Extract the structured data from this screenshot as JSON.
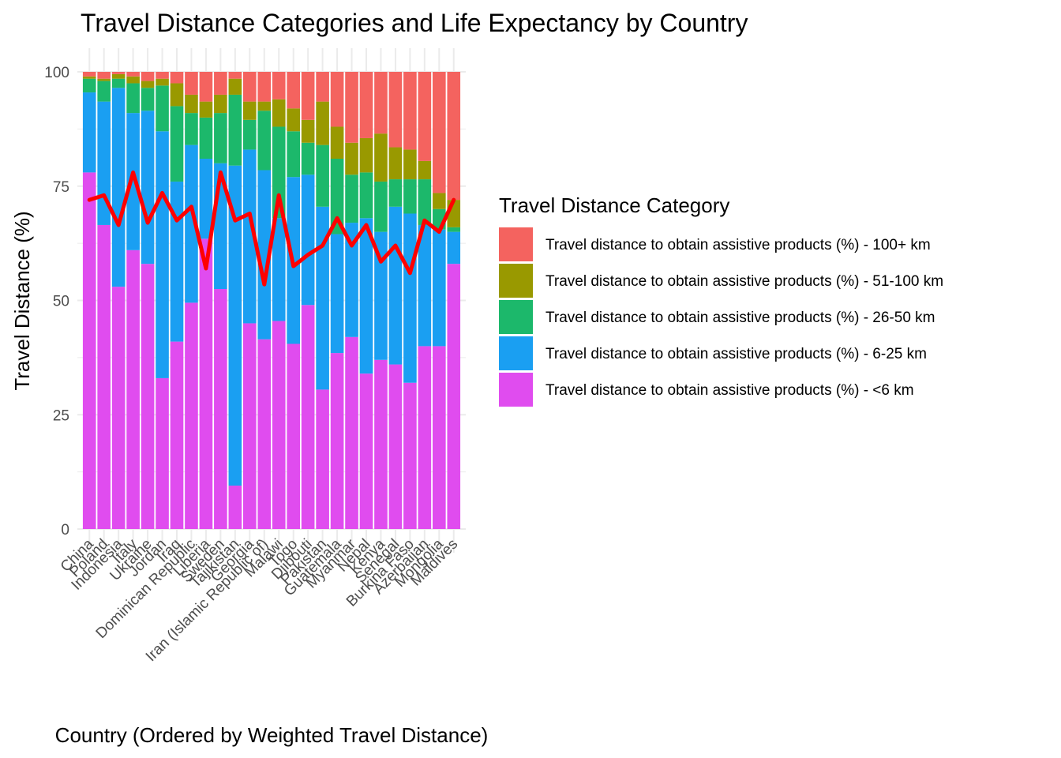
{
  "chart_data": {
    "type": "bar",
    "stacked": true,
    "title": "Travel Distance Categories and Life Expectancy by Country",
    "xlabel": "Country (Ordered by Weighted Travel Distance)",
    "ylabel": "Travel Distance (%)",
    "ylim": [
      0,
      100
    ],
    "yticks": [
      0,
      25,
      50,
      75,
      100
    ],
    "grid": true,
    "legend": {
      "title": "Travel Distance Category",
      "placement": "right",
      "order": [
        4,
        3,
        2,
        1,
        0
      ]
    },
    "categories": [
      "China",
      "Poland",
      "Indonesia",
      "Italy",
      "Ukraine",
      "Jordan",
      "Iraq",
      "Dominican Republic",
      "Liberia",
      "Sweden",
      "Tajikistan",
      "Georgia",
      "Iran (Islamic Republic of)",
      "Malawi",
      "Togo",
      "Djibouti",
      "Pakistan",
      "Guatemala",
      "Myanmar",
      "Nepal",
      "Kenya",
      "Senegal",
      "Burkina Faso",
      "Azerbaijan",
      "Mongolia",
      "Maldives"
    ],
    "series": [
      {
        "name": "Travel distance to obtain assistive products (%) - <6 km",
        "color": "#E04CEF",
        "values": [
          78,
          66.5,
          53,
          61,
          58,
          33,
          41,
          49.5,
          63.5,
          52.5,
          9.5,
          45,
          41.5,
          45.5,
          40.5,
          49,
          30.5,
          38.5,
          42,
          34,
          37,
          36,
          32,
          40,
          40,
          58
        ]
      },
      {
        "name": "Travel distance to obtain assistive products (%) - 6-25 km",
        "color": "#1A9FF2",
        "values": [
          17.5,
          27,
          43.5,
          30,
          33.5,
          54,
          35,
          34.5,
          17.5,
          27.5,
          70,
          38,
          37,
          22.5,
          36.5,
          28.5,
          40,
          26,
          25,
          34,
          28,
          34.5,
          37,
          26.5,
          25.5,
          7
        ]
      },
      {
        "name": "Travel distance to obtain assistive products (%) - 26-50 km",
        "color": "#1CB86B",
        "values": [
          3,
          4.5,
          2,
          6.5,
          5,
          10,
          16.5,
          7,
          9,
          11,
          15.5,
          6.5,
          13,
          20,
          10,
          7,
          13.5,
          16.5,
          10.5,
          10,
          11,
          6,
          7.5,
          10,
          4.5,
          1
        ]
      },
      {
        "name": "Travel distance to obtain assistive products (%) - 51-100 km",
        "color": "#999900",
        "values": [
          0.5,
          0.5,
          1,
          1.5,
          1.5,
          1.5,
          5,
          4,
          3.5,
          4,
          3.5,
          4,
          2,
          6,
          5,
          5,
          9.5,
          7,
          7,
          7.5,
          10.5,
          7,
          6.5,
          4,
          3.5,
          6
        ]
      },
      {
        "name": "Travel distance to obtain assistive products (%) - 100+ km",
        "color": "#F4635F",
        "values": [
          1,
          1.5,
          0.5,
          1,
          2,
          1.5,
          2.5,
          5,
          6.5,
          5,
          1.5,
          6.5,
          6.5,
          6,
          8,
          10.5,
          6.5,
          12,
          15.5,
          14.5,
          13.5,
          16.5,
          17,
          19.5,
          26.5,
          28
        ]
      }
    ],
    "line": {
      "color": "#FF0000",
      "values": [
        72,
        73,
        66.5,
        78,
        67,
        73.5,
        67.5,
        70.5,
        57,
        78,
        67.5,
        69,
        53.5,
        73,
        57.5,
        60,
        62,
        68,
        62,
        66.5,
        58.5,
        62,
        56,
        67.5,
        65,
        72
      ]
    }
  }
}
